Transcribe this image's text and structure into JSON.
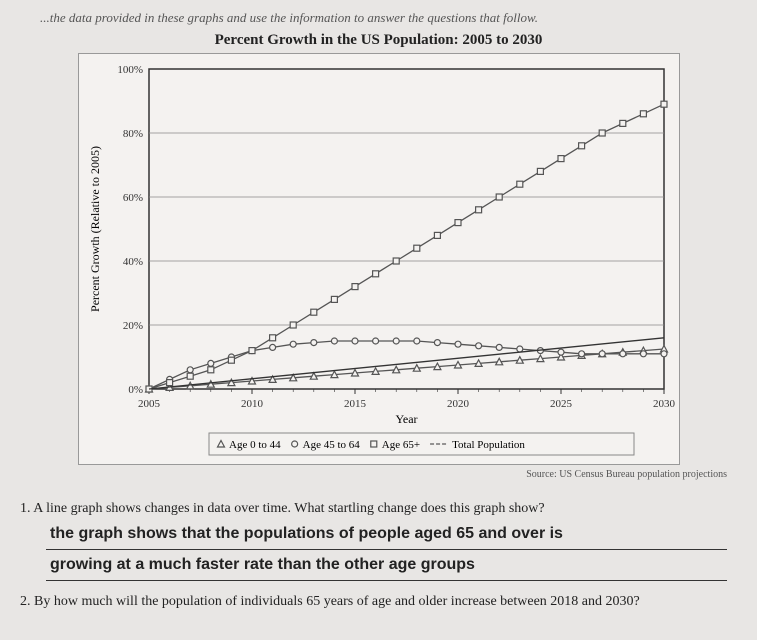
{
  "instruction": "...the data provided in these graphs and use the information to answer the questions that follow.",
  "chart": {
    "type": "line",
    "title": "Percent Growth in the US Population: 2005 to 2030",
    "xlabel": "Year",
    "ylabel": "Percent Growth (Relative to 2005)",
    "xlim": [
      2005,
      2030
    ],
    "ylim": [
      0,
      100
    ],
    "xtick_step": 5,
    "ytick_step": 20,
    "ytick_suffix": "%",
    "background_color": "#f4f2f0",
    "grid_color": "#888888",
    "axis_color": "#333333",
    "series": [
      {
        "name": "Age 0 to 44",
        "marker": "triangle",
        "color": "#555555",
        "data": [
          [
            2005,
            0
          ],
          [
            2006,
            0.5
          ],
          [
            2007,
            1
          ],
          [
            2008,
            1.5
          ],
          [
            2009,
            2
          ],
          [
            2010,
            2.5
          ],
          [
            2011,
            3
          ],
          [
            2012,
            3.5
          ],
          [
            2013,
            4
          ],
          [
            2014,
            4.5
          ],
          [
            2015,
            5
          ],
          [
            2016,
            5.5
          ],
          [
            2017,
            6
          ],
          [
            2018,
            6.5
          ],
          [
            2019,
            7
          ],
          [
            2020,
            7.5
          ],
          [
            2021,
            8
          ],
          [
            2022,
            8.5
          ],
          [
            2023,
            9
          ],
          [
            2024,
            9.5
          ],
          [
            2025,
            10
          ],
          [
            2026,
            10.5
          ],
          [
            2027,
            11
          ],
          [
            2028,
            11.5
          ],
          [
            2029,
            12
          ],
          [
            2030,
            12.5
          ]
        ]
      },
      {
        "name": "Age 45 to 64",
        "marker": "circle",
        "color": "#555555",
        "data": [
          [
            2005,
            0
          ],
          [
            2006,
            3
          ],
          [
            2007,
            6
          ],
          [
            2008,
            8
          ],
          [
            2009,
            10
          ],
          [
            2010,
            12
          ],
          [
            2011,
            13
          ],
          [
            2012,
            14
          ],
          [
            2013,
            14.5
          ],
          [
            2014,
            15
          ],
          [
            2015,
            15
          ],
          [
            2016,
            15
          ],
          [
            2017,
            15
          ],
          [
            2018,
            15
          ],
          [
            2019,
            14.5
          ],
          [
            2020,
            14
          ],
          [
            2021,
            13.5
          ],
          [
            2022,
            13
          ],
          [
            2023,
            12.5
          ],
          [
            2024,
            12
          ],
          [
            2025,
            11.5
          ],
          [
            2026,
            11
          ],
          [
            2027,
            11
          ],
          [
            2028,
            11
          ],
          [
            2029,
            11
          ],
          [
            2030,
            11
          ]
        ]
      },
      {
        "name": "Age 65+",
        "marker": "square",
        "color": "#555555",
        "data": [
          [
            2005,
            0
          ],
          [
            2006,
            2
          ],
          [
            2007,
            4
          ],
          [
            2008,
            6
          ],
          [
            2009,
            9
          ],
          [
            2010,
            12
          ],
          [
            2011,
            16
          ],
          [
            2012,
            20
          ],
          [
            2013,
            24
          ],
          [
            2014,
            28
          ],
          [
            2015,
            32
          ],
          [
            2016,
            36
          ],
          [
            2017,
            40
          ],
          [
            2018,
            44
          ],
          [
            2019,
            48
          ],
          [
            2020,
            52
          ],
          [
            2021,
            56
          ],
          [
            2022,
            60
          ],
          [
            2023,
            64
          ],
          [
            2024,
            68
          ],
          [
            2025,
            72
          ],
          [
            2026,
            76
          ],
          [
            2027,
            80
          ],
          [
            2028,
            83
          ],
          [
            2029,
            86
          ],
          [
            2030,
            89
          ]
        ]
      },
      {
        "name": "Total Population",
        "marker": "none",
        "color": "#333333",
        "data": [
          [
            2005,
            0
          ],
          [
            2030,
            16
          ]
        ]
      }
    ],
    "source": "Source: US Census Bureau population projections",
    "label_fontsize": 12,
    "tick_fontsize": 11
  },
  "q1": {
    "num": "1.",
    "text": "A line graph shows changes in data over time. What startling change does this graph show?",
    "answer_l1": "the graph shows that the populations of people aged 65 and over is",
    "answer_l2": "growing at a much faster rate than the other age groups"
  },
  "q2": {
    "num": "2.",
    "text": "By how much will the population of individuals 65 years of age and older increase between 2018 and 2030?"
  }
}
